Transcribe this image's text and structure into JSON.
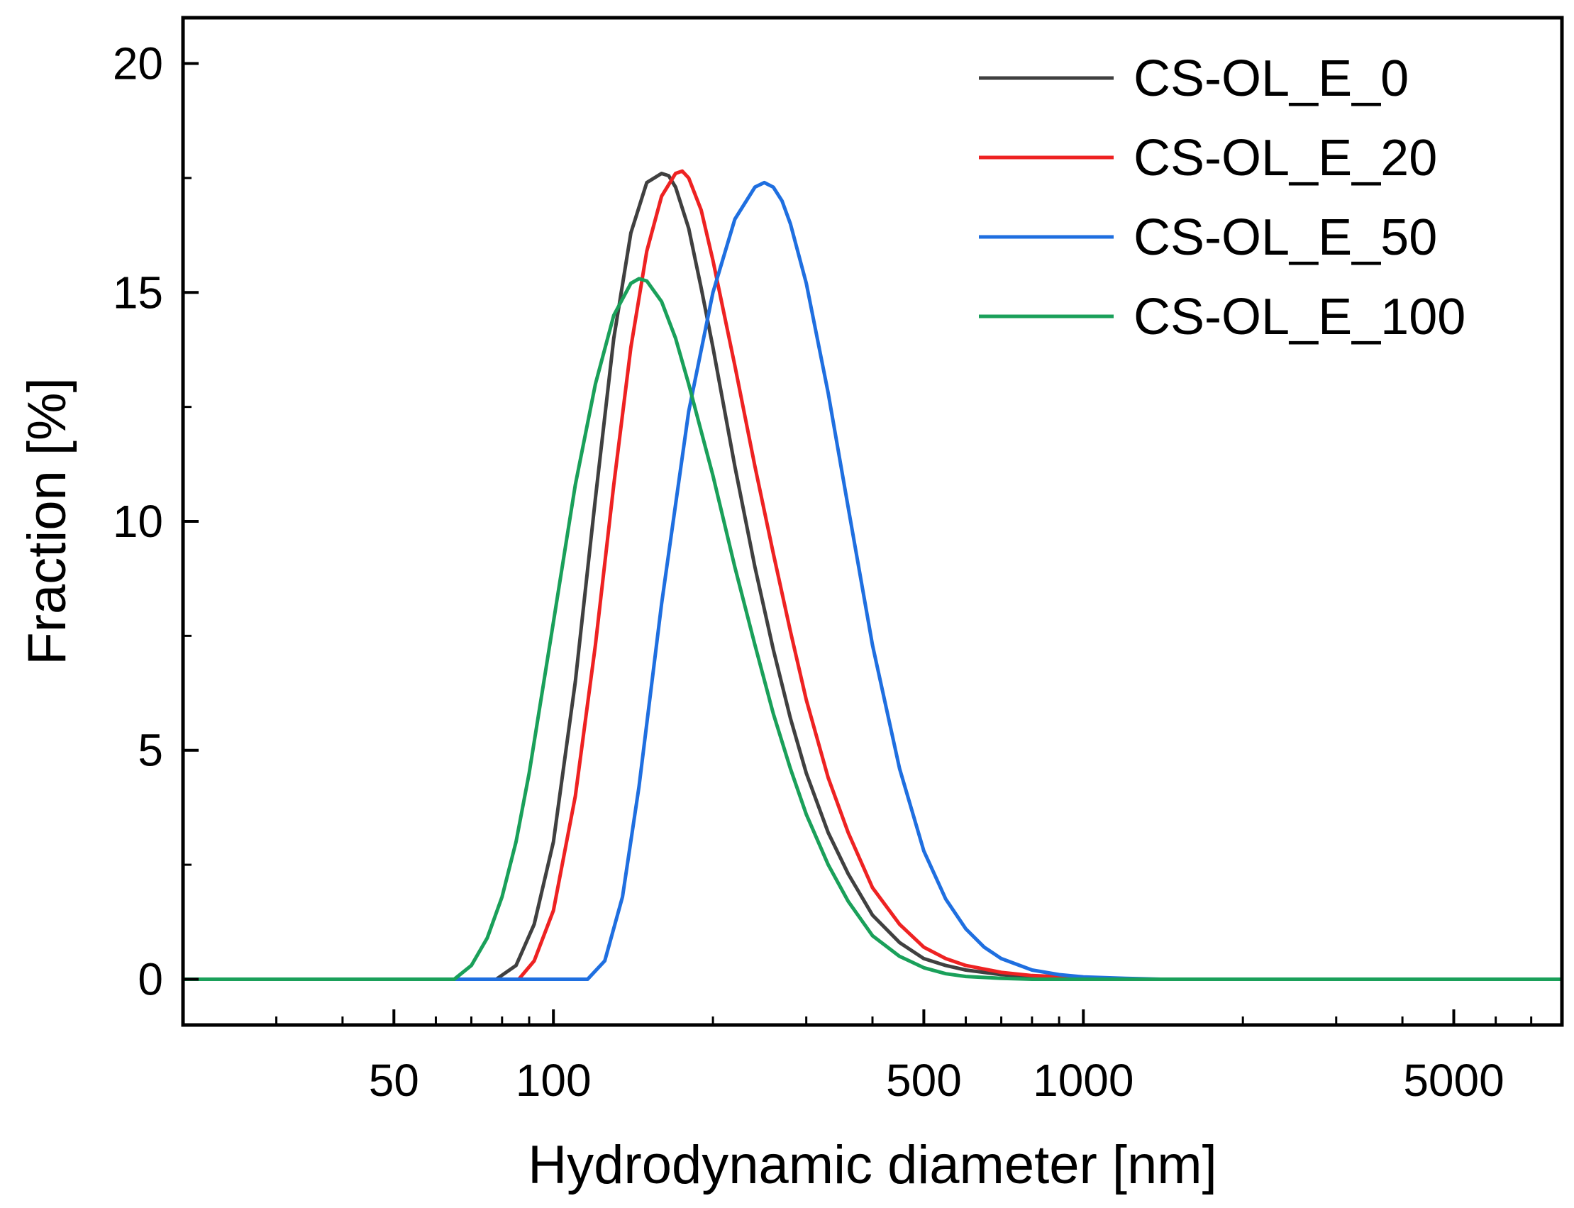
{
  "chart_data": {
    "type": "line",
    "title": "",
    "xlabel": "Hydrodynamic diameter [nm]",
    "ylabel": "Fraction [%]",
    "x_scale": "log",
    "xlim": [
      20,
      8000
    ],
    "ylim": [
      -1,
      21
    ],
    "x_ticks": [
      50,
      100,
      500,
      1000,
      5000
    ],
    "x_tick_labels": [
      "50",
      "100",
      "500",
      "1000",
      "5000"
    ],
    "y_ticks": [
      0,
      5,
      10,
      15,
      20
    ],
    "y_tick_labels": [
      "0",
      "5",
      "10",
      "15",
      "20"
    ],
    "legend_position": "top-right",
    "grid": false,
    "series": [
      {
        "name": "CS-OL_E_0",
        "color": "#404040",
        "x": [
          20,
          60,
          78,
          85,
          92,
          100,
          110,
          120,
          130,
          140,
          150,
          160,
          165,
          170,
          180,
          190,
          200,
          220,
          240,
          260,
          280,
          300,
          330,
          360,
          400,
          450,
          500,
          550,
          600,
          700,
          800,
          1000,
          1300,
          8000
        ],
        "y": [
          0,
          0,
          0,
          0.3,
          1.2,
          3.0,
          6.5,
          10.5,
          14.0,
          16.3,
          17.4,
          17.6,
          17.55,
          17.3,
          16.4,
          15.1,
          13.8,
          11.2,
          9.0,
          7.2,
          5.7,
          4.5,
          3.2,
          2.3,
          1.4,
          0.8,
          0.45,
          0.3,
          0.2,
          0.1,
          0.05,
          0.02,
          0,
          0
        ]
      },
      {
        "name": "CS-OL_E_20",
        "color": "#ee2222",
        "x": [
          20,
          60,
          86,
          92,
          100,
          110,
          120,
          130,
          140,
          150,
          160,
          170,
          175,
          180,
          190,
          200,
          220,
          240,
          260,
          280,
          300,
          330,
          360,
          400,
          450,
          500,
          550,
          600,
          700,
          800,
          1000,
          1300,
          8000
        ],
        "y": [
          0,
          0,
          0,
          0.4,
          1.5,
          4.0,
          7.3,
          10.8,
          13.8,
          15.9,
          17.1,
          17.6,
          17.65,
          17.5,
          16.8,
          15.7,
          13.4,
          11.2,
          9.3,
          7.6,
          6.1,
          4.4,
          3.2,
          2.0,
          1.2,
          0.7,
          0.45,
          0.3,
          0.15,
          0.08,
          0.03,
          0,
          0
        ]
      },
      {
        "name": "CS-OL_E_50",
        "color": "#1f6fe0",
        "x": [
          20,
          100,
          116,
          125,
          135,
          145,
          160,
          180,
          200,
          220,
          240,
          250,
          260,
          270,
          280,
          300,
          330,
          360,
          400,
          450,
          500,
          550,
          600,
          650,
          700,
          800,
          900,
          1000,
          1200,
          1400,
          8000
        ],
        "y": [
          0,
          0,
          0,
          0.4,
          1.8,
          4.2,
          8.2,
          12.4,
          15.0,
          16.6,
          17.3,
          17.4,
          17.3,
          17.0,
          16.5,
          15.2,
          12.8,
          10.3,
          7.3,
          4.6,
          2.8,
          1.75,
          1.1,
          0.7,
          0.45,
          0.2,
          0.1,
          0.05,
          0.02,
          0,
          0
        ]
      },
      {
        "name": "CS-OL_E_100",
        "color": "#1aa05a",
        "x": [
          20,
          55,
          65,
          70,
          75,
          80,
          85,
          90,
          100,
          110,
          120,
          130,
          140,
          145,
          150,
          160,
          170,
          180,
          200,
          220,
          240,
          260,
          280,
          300,
          330,
          360,
          400,
          450,
          500,
          550,
          600,
          700,
          800,
          8000
        ],
        "y": [
          0,
          0,
          0,
          0.3,
          0.9,
          1.8,
          3.0,
          4.5,
          7.8,
          10.8,
          13.0,
          14.5,
          15.2,
          15.3,
          15.25,
          14.8,
          14.0,
          13.0,
          11.0,
          9.0,
          7.3,
          5.8,
          4.6,
          3.6,
          2.5,
          1.7,
          0.95,
          0.5,
          0.25,
          0.12,
          0.06,
          0.02,
          0,
          0
        ]
      }
    ]
  }
}
